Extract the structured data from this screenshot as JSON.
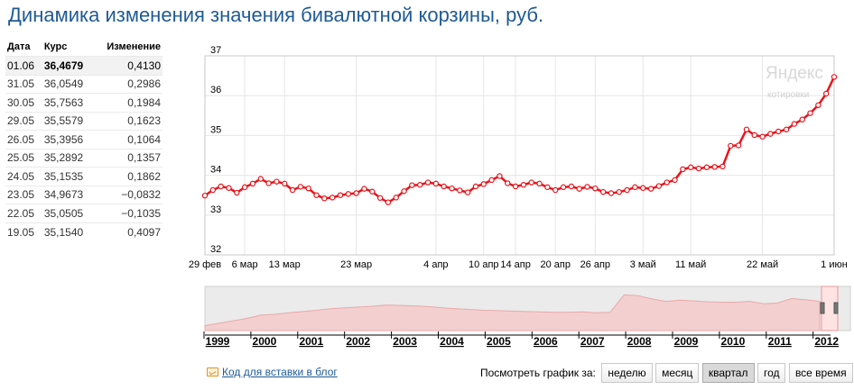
{
  "title": "Динамика изменения значения бивалютной корзины, руб.",
  "table": {
    "headers": [
      "Дата",
      "Курс",
      "Изменение"
    ],
    "rows": [
      {
        "date": "01.06",
        "rate": "36,4679",
        "change": "0,4130"
      },
      {
        "date": "31.05",
        "rate": "36,0549",
        "change": "0,2986"
      },
      {
        "date": "30.05",
        "rate": "35,7563",
        "change": "0,1984"
      },
      {
        "date": "29.05",
        "rate": "35,5579",
        "change": "0,1623"
      },
      {
        "date": "26.05",
        "rate": "35,3956",
        "change": "0,1064"
      },
      {
        "date": "25.05",
        "rate": "35,2892",
        "change": "0,1357"
      },
      {
        "date": "24.05",
        "rate": "35,1535",
        "change": "0,1862"
      },
      {
        "date": "23.05",
        "rate": "34,9673",
        "change": "−0,0832"
      },
      {
        "date": "22.05",
        "rate": "35,0505",
        "change": "−0,1035"
      },
      {
        "date": "19.05",
        "rate": "35,1540",
        "change": "0,4097"
      }
    ]
  },
  "watermark": {
    "line1": "Яндекс",
    "line2": "котировки"
  },
  "chart_data": {
    "type": "line",
    "title": "Динамика изменения значения бивалютной корзины, руб.",
    "ylim": [
      32,
      37
    ],
    "yticks": [
      "32",
      "33",
      "34",
      "35",
      "36",
      "37"
    ],
    "grid": true,
    "xticks": [
      "29 фев",
      "6 мар",
      "13 мар",
      "23 мар",
      "4 апр",
      "10 апр",
      "14 апр",
      "20 апр",
      "26 апр",
      "3 май",
      "11 май",
      "22 май",
      "1 июн"
    ],
    "series": [
      {
        "values": [
          33.49,
          33.63,
          33.72,
          33.68,
          33.56,
          33.7,
          33.79,
          33.91,
          33.8,
          33.84,
          33.79,
          33.63,
          33.71,
          33.67,
          33.5,
          33.42,
          33.44,
          33.5,
          33.53,
          33.55,
          33.66,
          33.59,
          33.43,
          33.32,
          33.44,
          33.6,
          33.75,
          33.76,
          33.82,
          33.79,
          33.72,
          33.67,
          33.62,
          33.57,
          33.72,
          33.78,
          33.88,
          33.98,
          33.8,
          33.72,
          33.76,
          33.82,
          33.79,
          33.7,
          33.63,
          33.7,
          33.72,
          33.66,
          33.71,
          33.67,
          33.58,
          33.55,
          33.58,
          33.63,
          33.7,
          33.68,
          33.66,
          33.73,
          33.82,
          33.88,
          34.15,
          34.2,
          34.17,
          34.2,
          34.21,
          34.22,
          34.74,
          34.75,
          35.15,
          35.01,
          34.97,
          35.04,
          35.1,
          35.15,
          35.29,
          35.4,
          35.56,
          35.76,
          36.05,
          36.47
        ]
      }
    ]
  },
  "overview": {
    "years": [
      "1999",
      "2000",
      "2001",
      "2002",
      "2003",
      "2004",
      "2005",
      "2006",
      "2007",
      "2008",
      "2009",
      "2010",
      "2011",
      "2012"
    ],
    "values": [
      0.12,
      0.18,
      0.24,
      0.3,
      0.38,
      0.4,
      0.44,
      0.47,
      0.5,
      0.54,
      0.56,
      0.58,
      0.6,
      0.63,
      0.62,
      0.61,
      0.59,
      0.56,
      0.54,
      0.52,
      0.5,
      0.49,
      0.48,
      0.47,
      0.46,
      0.45,
      0.45,
      0.46,
      0.44,
      0.45,
      0.88,
      0.86,
      0.78,
      0.72,
      0.75,
      0.73,
      0.71,
      0.7,
      0.7,
      0.72,
      0.66,
      0.68,
      0.79,
      0.76,
      0.72
    ]
  },
  "footer": {
    "blog_link": "Код для вставки в блог",
    "period_label": "Посмотреть график за:",
    "periods": [
      "неделю",
      "месяц",
      "квартал",
      "год",
      "все время"
    ],
    "active_period": "квартал"
  },
  "colors": {
    "line": "#e8141b",
    "title": "#1f5a96",
    "grid": "#e6e6e6"
  }
}
